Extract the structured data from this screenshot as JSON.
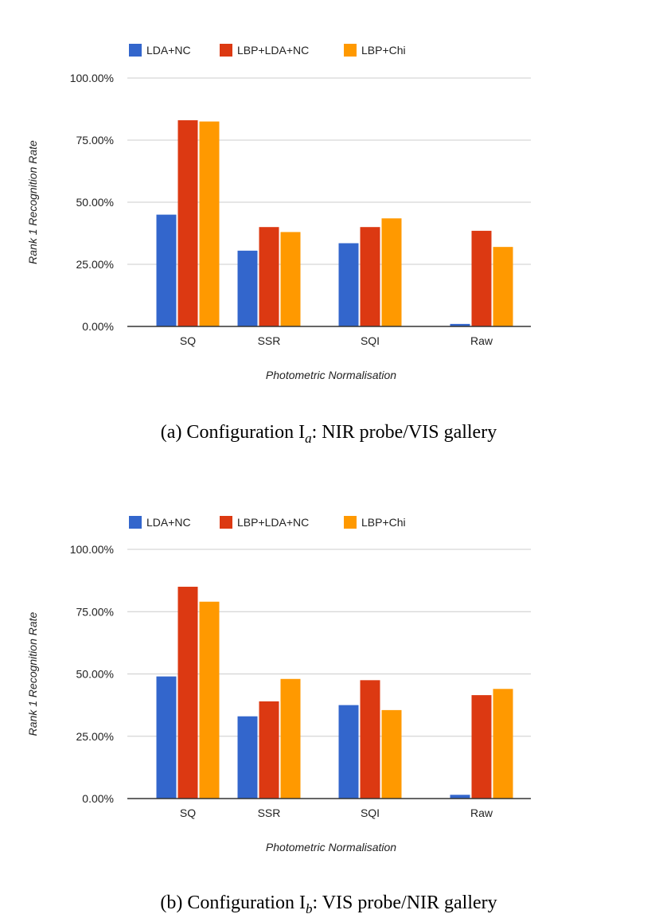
{
  "chart_data": [
    {
      "type": "bar",
      "title": "",
      "xlabel": "Photometric Normalisation",
      "ylabel": "Rank 1 Recognition Rate",
      "ylim": [
        0,
        100
      ],
      "yticks": [
        "0.00%",
        "25.00%",
        "50.00%",
        "75.00%",
        "100.00%"
      ],
      "yticks_values": [
        0,
        25,
        50,
        75,
        100
      ],
      "categories": [
        "SQ",
        "SSR",
        "SQI",
        "Raw"
      ],
      "legend_position": "top-left",
      "series": [
        {
          "name": "LDA+NC",
          "color": "#3366cc",
          "values": [
            45,
            30.5,
            33.5,
            1
          ]
        },
        {
          "name": "LBP+LDA+NC",
          "color": "#dc3912",
          "values": [
            83,
            40,
            40,
            38.5
          ]
        },
        {
          "name": "LBP+Chi",
          "color": "#ff9900",
          "values": [
            82.5,
            38,
            43.5,
            32
          ]
        }
      ],
      "caption": {
        "prefix": "(a)  Configuration I",
        "sub": "a",
        "suffix": ": NIR probe/VIS gallery"
      }
    },
    {
      "type": "bar",
      "title": "",
      "xlabel": "Photometric Normalisation",
      "ylabel": "Rank 1 Recognition Rate",
      "ylim": [
        0,
        100
      ],
      "yticks": [
        "0.00%",
        "25.00%",
        "50.00%",
        "75.00%",
        "100.00%"
      ],
      "yticks_values": [
        0,
        25,
        50,
        75,
        100
      ],
      "categories": [
        "SQ",
        "SSR",
        "SQI",
        "Raw"
      ],
      "legend_position": "top-left",
      "series": [
        {
          "name": "LDA+NC",
          "color": "#3366cc",
          "values": [
            49,
            33,
            37.5,
            1.5
          ]
        },
        {
          "name": "LBP+LDA+NC",
          "color": "#dc3912",
          "values": [
            85,
            39,
            47.5,
            41.5
          ]
        },
        {
          "name": "LBP+Chi",
          "color": "#ff9900",
          "values": [
            79,
            48,
            35.5,
            44
          ]
        }
      ],
      "caption": {
        "prefix": "(b)  Configuration I",
        "sub": "b",
        "suffix": ": VIS probe/NIR gallery"
      }
    }
  ]
}
